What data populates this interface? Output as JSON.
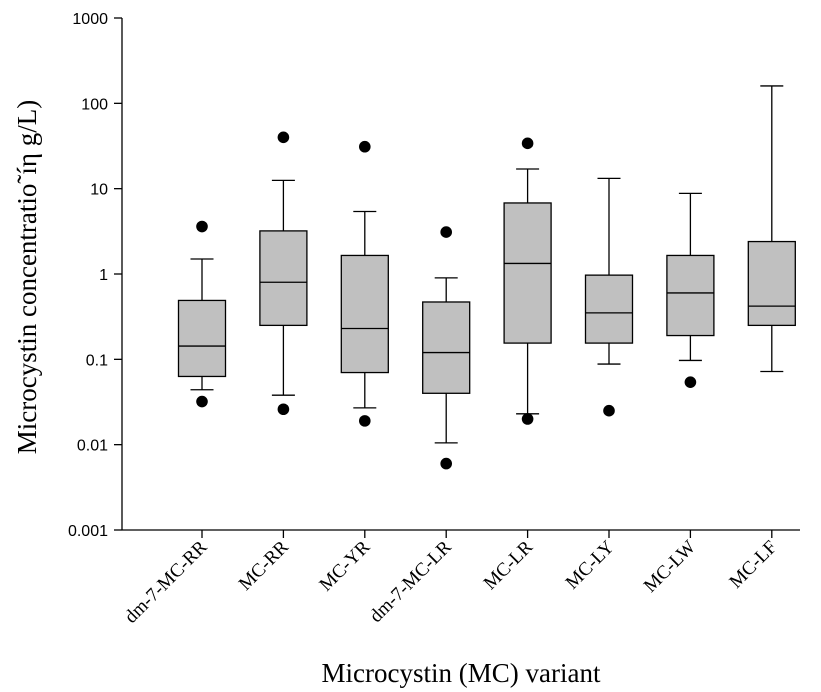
{
  "chart_data": {
    "type": "boxplot",
    "title": "",
    "xlabel": "Microcystin (MC) variant",
    "ylabel": "Microcystin concentration (µg/L)",
    "ylabel_rendered": "Microcystin concentratio˜íη g/L)",
    "yscale": "log",
    "ylim": [
      0.001,
      1000
    ],
    "yticks": [
      "0.001",
      "0.01",
      "0.1",
      "1",
      "10",
      "100",
      "1000"
    ],
    "colors": {
      "box_fill": "#c0c0c0",
      "stroke": "#000000",
      "outlier": "#000000"
    },
    "categories": [
      "dm-7-MC-RR",
      "MC-RR",
      "MC-YR",
      "dm-7-MC-LR",
      "MC-LR",
      "MC-LY",
      "MC-LW",
      "MC-LF"
    ],
    "boxes": [
      {
        "whisker_low": 0.044,
        "q1": 0.063,
        "median": 0.143,
        "q3": 0.49,
        "whisker_high": 1.5,
        "outliers": [
          0.032,
          3.6
        ]
      },
      {
        "whisker_low": 0.038,
        "q1": 0.25,
        "median": 0.8,
        "q3": 3.2,
        "whisker_high": 12.5,
        "outliers": [
          0.026,
          40
        ]
      },
      {
        "whisker_low": 0.027,
        "q1": 0.07,
        "median": 0.23,
        "q3": 1.65,
        "whisker_high": 5.4,
        "outliers": [
          0.019,
          31
        ]
      },
      {
        "whisker_low": 0.0105,
        "q1": 0.04,
        "median": 0.12,
        "q3": 0.47,
        "whisker_high": 0.9,
        "outliers": [
          0.006,
          3.1
        ]
      },
      {
        "whisker_low": 0.023,
        "q1": 0.155,
        "median": 1.33,
        "q3": 6.8,
        "whisker_high": 17,
        "outliers": [
          0.02,
          34
        ]
      },
      {
        "whisker_low": 0.088,
        "q1": 0.155,
        "median": 0.35,
        "q3": 0.97,
        "whisker_high": 13.2,
        "outliers": [
          0.025
        ]
      },
      {
        "whisker_low": 0.097,
        "q1": 0.19,
        "median": 0.6,
        "q3": 1.65,
        "whisker_high": 8.8,
        "outliers": [
          0.054
        ]
      },
      {
        "whisker_low": 0.072,
        "q1": 0.25,
        "median": 0.42,
        "q3": 2.4,
        "whisker_high": 160,
        "outliers": []
      }
    ],
    "grid": false,
    "legend": "none"
  }
}
